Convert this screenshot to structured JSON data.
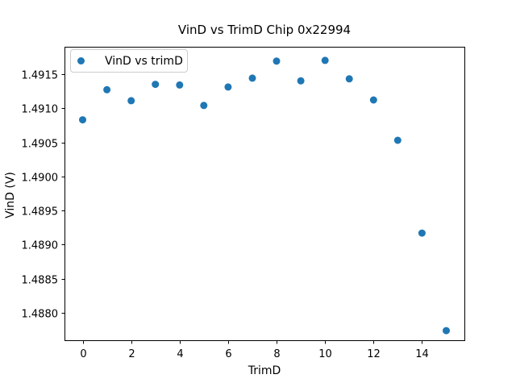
{
  "figure": {
    "background": "#ffffff",
    "text_color": "#000000"
  },
  "chart_data": {
    "type": "scatter",
    "title": "VinD vs TrimD Chip 0x22994",
    "xlabel": "TrimD",
    "ylabel": "VinD (V)",
    "legend": {
      "entries": [
        "VinD vs trimD"
      ],
      "position": "upper left",
      "border_color": "#cccccc"
    },
    "x": [
      0,
      1,
      2,
      3,
      4,
      5,
      6,
      7,
      8,
      9,
      10,
      11,
      12,
      13,
      14,
      15
    ],
    "y": [
      1.49083,
      1.49127,
      1.49111,
      1.49135,
      1.49134,
      1.49104,
      1.49131,
      1.49144,
      1.49169,
      1.4914,
      1.4917,
      1.49143,
      1.49112,
      1.49053,
      1.48917,
      1.48774
    ],
    "xlim": [
      -0.75,
      15.75
    ],
    "ylim": [
      1.4876,
      1.4919
    ],
    "xticks": [
      0,
      2,
      4,
      6,
      8,
      10,
      12,
      14
    ],
    "yticks": [
      1.488,
      1.4885,
      1.489,
      1.4895,
      1.49,
      1.4905,
      1.491,
      1.4915
    ],
    "ytick_decimals": 4,
    "grid": false,
    "marker": {
      "shape": "circle",
      "color": "#1f77b4",
      "radius_px": 4.5
    },
    "axes_color": "#000000"
  }
}
